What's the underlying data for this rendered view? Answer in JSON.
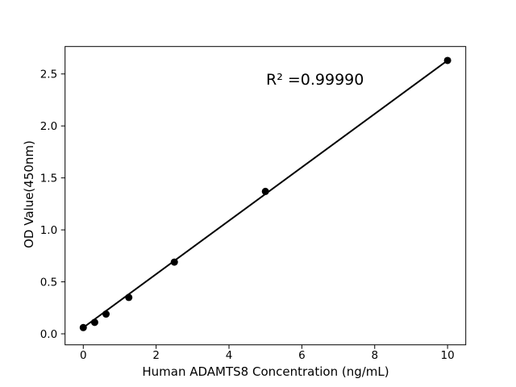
{
  "figure": {
    "background": "#ffffff",
    "foreground": "#000000"
  },
  "chart_data": {
    "type": "scatter",
    "title": "",
    "xlabel": "Human ADAMTS8 Concentration (ng/mL)",
    "ylabel": "OD Value(450nm)",
    "annotation": {
      "text": "R² =0.99990",
      "x": 5.0,
      "y": 2.38
    },
    "x": [
      0,
      0.313,
      0.625,
      1.25,
      2.5,
      5,
      10
    ],
    "y": [
      0.06,
      0.11,
      0.19,
      0.35,
      0.69,
      1.37,
      2.63
    ],
    "fit_line": {
      "x1": 0,
      "y1": 0.06,
      "x2": 10,
      "y2": 2.63
    },
    "xlim": [
      -0.5,
      10.5
    ],
    "ylim": [
      -0.106,
      2.764
    ],
    "xticks": {
      "values": [
        0,
        2,
        4,
        6,
        8,
        10
      ],
      "labels": [
        "0",
        "2",
        "4",
        "6",
        "8",
        "10"
      ]
    },
    "yticks": {
      "values": [
        0,
        0.5,
        1,
        1.5,
        2,
        2.5
      ],
      "labels": [
        "0.0",
        "0.5",
        "1.0",
        "1.5",
        "2.0",
        "2.5"
      ]
    },
    "grid": false,
    "legend": null,
    "marker_color": "#000000",
    "line_color": "#000000"
  }
}
